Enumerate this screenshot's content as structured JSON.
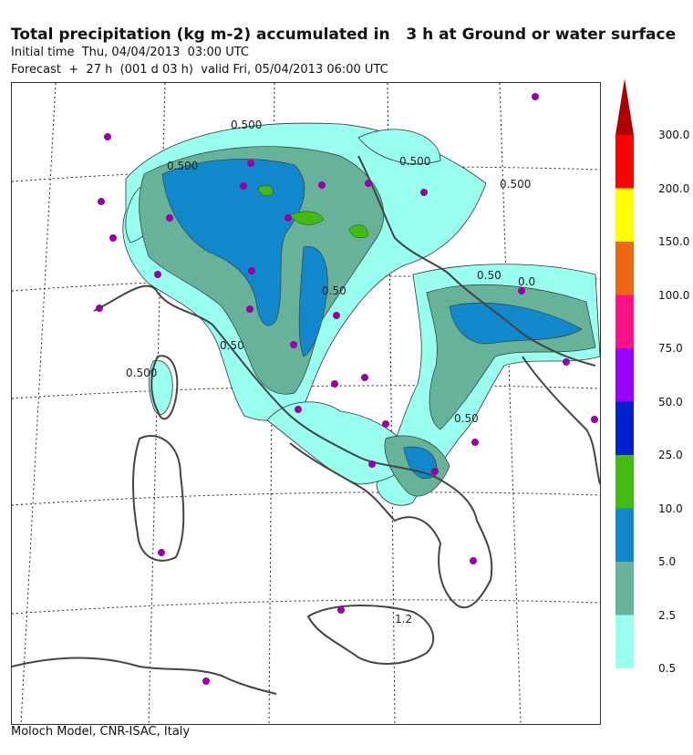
{
  "header": {
    "title": "Total precipitation (kg m-2) accumulated in   3 h at Ground or water surface",
    "initial_time": "Initial time  Thu, 04/04/2013  03:00 UTC",
    "forecast": "Forecast  +  27 h  (001 d 03 h)  valid Fri, 05/04/2013 06:00 UTC"
  },
  "footer": "Moloch Model, CNR-ISAC, Italy",
  "legend": {
    "levels": [
      "0.5",
      "2.5",
      "5.0",
      "10.0",
      "25.0",
      "50.0",
      "75.0",
      "100.0",
      "150.0",
      "200.0",
      "300.0"
    ],
    "colors": [
      "#99ffee",
      "#66b399",
      "#1188cc",
      "#44bb11",
      "#0022cc",
      "#9900ff",
      "#ff1188",
      "#ee6611",
      "#ffff00",
      "#ff0000",
      "#aa0000"
    ]
  },
  "contour_labels": [
    "0.500",
    "0.500",
    "0.500",
    "0.50",
    "0.500",
    "0.50",
    "0.50",
    "0.50",
    "0.500",
    "0.0",
    "1.2"
  ],
  "colors": {
    "coast": "#444444",
    "grid": "#222222",
    "station": "#9900aa"
  }
}
